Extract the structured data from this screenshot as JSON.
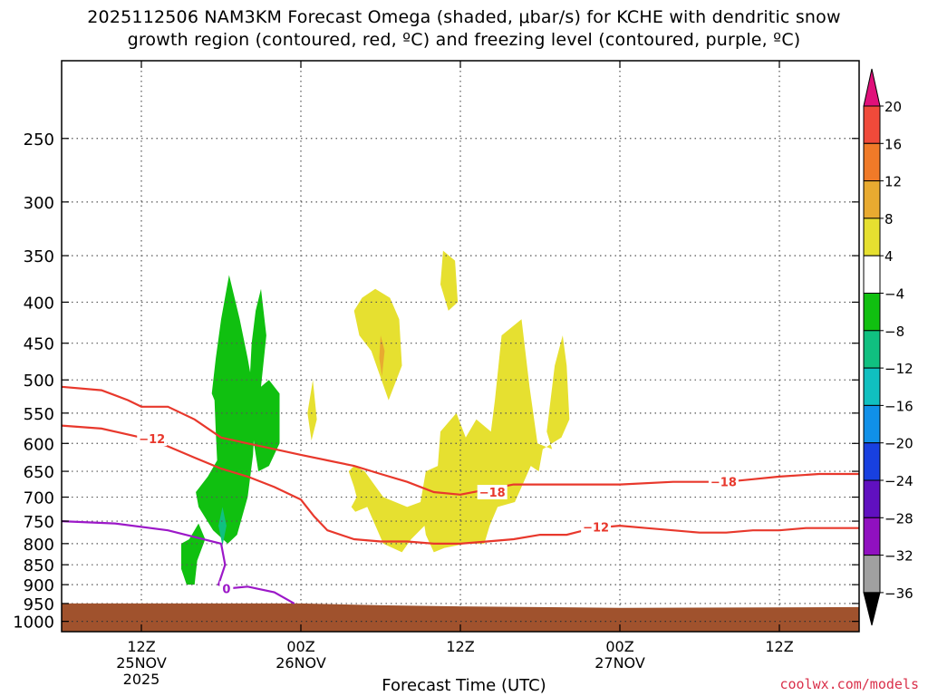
{
  "header": {
    "title_line1": "2025112506 NAM3KM Forecast Omega (shaded, μbar/s) for KCHE with dendritic snow",
    "title_line2": "growth region (contoured, red, ºC) and freezing level (contoured, purple, ºC)"
  },
  "credit": "coolwx.com/models",
  "chart_data": {
    "type": "heatmap",
    "title": "2025112506 NAM3KM Forecast Omega (shaded, μbar/s) for KCHE with dendritic snow growth region (contoured, red, ºC) and freezing level (contoured, purple, ºC)",
    "xlabel": "Forecast Time (UTC)",
    "ylabel": "",
    "x_ticks": [
      {
        "label": "12Z",
        "date": "25NOV",
        "year": "2025",
        "hour": 12
      },
      {
        "label": "00Z",
        "date": "26NOV",
        "year": "",
        "hour": 24
      },
      {
        "label": "12Z",
        "date": "",
        "year": "",
        "hour": 36
      },
      {
        "label": "00Z",
        "date": "27NOV",
        "year": "",
        "hour": 48
      },
      {
        "label": "12Z",
        "date": "",
        "year": "",
        "hour": 60
      }
    ],
    "xlim": [
      6,
      66
    ],
    "y_ticks": [
      250,
      300,
      350,
      400,
      450,
      500,
      550,
      600,
      650,
      700,
      750,
      800,
      850,
      900,
      950,
      1000
    ],
    "ylim": [
      1030,
      200
    ],
    "y_scale": "pressure (hPa, log)",
    "grid": true,
    "colorbar": {
      "labels": [
        "20",
        "16",
        "12",
        "8",
        "4",
        "−4",
        "−8",
        "−12",
        "−16",
        "−20",
        "−24",
        "−28",
        "−32",
        "−36"
      ],
      "colors": [
        "#e0107a",
        "#f04a3a",
        "#f07a28",
        "#e8aa30",
        "#e6e030",
        "#ffffff",
        "#10c010",
        "#10c080",
        "#10c0c0",
        "#1090e8",
        "#1840e0",
        "#6010c0",
        "#9010c0",
        "#a0a0a0",
        "#000000"
      ]
    },
    "series": [
      {
        "name": "-12",
        "type": "contour",
        "color": "#e8382c",
        "points": [
          [
            6,
            570
          ],
          [
            9,
            575
          ],
          [
            12,
            590
          ],
          [
            14,
            605
          ],
          [
            16,
            625
          ],
          [
            18,
            645
          ],
          [
            20,
            660
          ],
          [
            22,
            680
          ],
          [
            24,
            705
          ],
          [
            25,
            740
          ],
          [
            26,
            770
          ],
          [
            28,
            790
          ],
          [
            30,
            795
          ],
          [
            32,
            795
          ],
          [
            34,
            800
          ],
          [
            36,
            800
          ],
          [
            38,
            795
          ],
          [
            40,
            790
          ],
          [
            42,
            780
          ],
          [
            44,
            780
          ],
          [
            46,
            765
          ],
          [
            48,
            760
          ],
          [
            50,
            765
          ],
          [
            52,
            770
          ],
          [
            54,
            775
          ],
          [
            56,
            775
          ],
          [
            58,
            770
          ],
          [
            60,
            770
          ],
          [
            62,
            765
          ],
          [
            66,
            765
          ]
        ]
      },
      {
        "name": "-18",
        "type": "contour",
        "color": "#e8382c",
        "points": [
          [
            6,
            510
          ],
          [
            9,
            515
          ],
          [
            11,
            530
          ],
          [
            12,
            540
          ],
          [
            14,
            540
          ],
          [
            16,
            560
          ],
          [
            18,
            590
          ],
          [
            20,
            600
          ],
          [
            22,
            610
          ],
          [
            24,
            620
          ],
          [
            26,
            630
          ],
          [
            28,
            640
          ],
          [
            30,
            655
          ],
          [
            32,
            670
          ],
          [
            34,
            690
          ],
          [
            36,
            695
          ],
          [
            38,
            685
          ],
          [
            40,
            675
          ],
          [
            44,
            675
          ],
          [
            48,
            675
          ],
          [
            52,
            670
          ],
          [
            56,
            670
          ],
          [
            58,
            665
          ],
          [
            60,
            660
          ],
          [
            63,
            655
          ],
          [
            66,
            655
          ]
        ]
      },
      {
        "name": "0",
        "type": "contour",
        "color": "#9c18c8",
        "points": [
          [
            6,
            750
          ],
          [
            10,
            755
          ],
          [
            14,
            770
          ],
          [
            16,
            785
          ],
          [
            18,
            800
          ],
          [
            18.3,
            850
          ],
          [
            17.8,
            900
          ],
          [
            18.5,
            910
          ],
          [
            20,
            905
          ],
          [
            22,
            920
          ],
          [
            23.5,
            950
          ]
        ]
      }
    ],
    "shaded_regions": [
      {
        "value": -6,
        "color": "#10c010",
        "points": [
          [
            18.6,
            370
          ],
          [
            19.4,
            420
          ],
          [
            20,
            470
          ],
          [
            20.6,
            535
          ],
          [
            20.4,
            620
          ],
          [
            20.0,
            700
          ],
          [
            19.2,
            780
          ],
          [
            18.5,
            800
          ],
          [
            17.4,
            770
          ],
          [
            16.3,
            720
          ],
          [
            16.1,
            690
          ],
          [
            17.0,
            660
          ],
          [
            17.7,
            630
          ],
          [
            17.6,
            580
          ],
          [
            17.5,
            530
          ],
          [
            17.3,
            520
          ],
          [
            17.6,
            470
          ],
          [
            18.0,
            420
          ]
        ]
      },
      {
        "value": -6,
        "color": "#10c010",
        "points": [
          [
            21.0,
            385
          ],
          [
            21.4,
            440
          ],
          [
            21.0,
            510
          ],
          [
            21.6,
            500
          ],
          [
            22.4,
            520
          ],
          [
            22.4,
            600
          ],
          [
            21.6,
            640
          ],
          [
            20.8,
            650
          ],
          [
            20.5,
            605
          ],
          [
            20.1,
            520
          ],
          [
            20.3,
            450
          ],
          [
            20.6,
            410
          ]
        ]
      },
      {
        "value": -6,
        "color": "#10c010",
        "points": [
          [
            16.3,
            755
          ],
          [
            16.8,
            790
          ],
          [
            16.2,
            840
          ],
          [
            16.0,
            900
          ],
          [
            15.4,
            900
          ],
          [
            15.0,
            860
          ],
          [
            15.0,
            800
          ],
          [
            15.6,
            790
          ]
        ]
      },
      {
        "value": -10,
        "color": "#10c080",
        "points": [
          [
            18.1,
            720
          ],
          [
            18.4,
            760
          ],
          [
            18.1,
            805
          ],
          [
            17.8,
            760
          ]
        ]
      },
      {
        "value": 6,
        "color": "#e6e030",
        "points": [
          [
            29.6,
            385
          ],
          [
            30.7,
            395
          ],
          [
            31.4,
            420
          ],
          [
            31.6,
            480
          ],
          [
            30.6,
            530
          ],
          [
            29.3,
            460
          ],
          [
            28.4,
            440
          ],
          [
            28.0,
            410
          ],
          [
            28.6,
            395
          ]
        ]
      },
      {
        "value": 6,
        "color": "#e6e030",
        "points": [
          [
            34.7,
            345
          ],
          [
            35.6,
            355
          ],
          [
            35.8,
            400
          ],
          [
            35.1,
            410
          ],
          [
            34.5,
            380
          ]
        ]
      },
      {
        "value": 6,
        "color": "#e6e030",
        "points": [
          [
            24.9,
            500
          ],
          [
            25.2,
            560
          ],
          [
            24.8,
            595
          ],
          [
            24.5,
            550
          ]
        ]
      },
      {
        "value": 10,
        "color": "#e8aa30",
        "points": [
          [
            30.0,
            440
          ],
          [
            30.3,
            460
          ],
          [
            30.1,
            495
          ],
          [
            29.9,
            470
          ]
        ]
      },
      {
        "value": 6,
        "color": "#e6e030",
        "points": [
          [
            28.0,
            640
          ],
          [
            28.8,
            650
          ],
          [
            30.2,
            700
          ],
          [
            32.0,
            720
          ],
          [
            33.0,
            710
          ],
          [
            33.4,
            650
          ],
          [
            34.3,
            640
          ],
          [
            34.5,
            580
          ],
          [
            35.7,
            550
          ],
          [
            36.4,
            590
          ],
          [
            37.2,
            560
          ],
          [
            38.3,
            580
          ],
          [
            38.6,
            530
          ],
          [
            39.1,
            440
          ],
          [
            40.6,
            420
          ],
          [
            41.2,
            510
          ],
          [
            41.8,
            600
          ],
          [
            42.9,
            610
          ],
          [
            42.5,
            580
          ],
          [
            43.1,
            480
          ],
          [
            43.7,
            440
          ],
          [
            44.0,
            480
          ],
          [
            44.2,
            560
          ],
          [
            43.6,
            590
          ],
          [
            42.2,
            610
          ],
          [
            41.9,
            650
          ],
          [
            41.3,
            640
          ],
          [
            40.6,
            680
          ],
          [
            40.1,
            710
          ],
          [
            38.8,
            720
          ],
          [
            38.2,
            760
          ],
          [
            37.8,
            800
          ],
          [
            36.4,
            800
          ],
          [
            34.8,
            810
          ],
          [
            34.0,
            820
          ],
          [
            33.4,
            780
          ],
          [
            33.3,
            760
          ],
          [
            32.3,
            790
          ],
          [
            31.6,
            820
          ],
          [
            30.2,
            800
          ],
          [
            29.0,
            720
          ],
          [
            28.1,
            730
          ],
          [
            27.8,
            720
          ],
          [
            28.2,
            700
          ],
          [
            28.0,
            680
          ],
          [
            27.6,
            650
          ]
        ]
      }
    ],
    "terrain": {
      "color": "#a0522d",
      "points": [
        [
          6,
          950
        ],
        [
          24,
          950
        ],
        [
          30,
          955
        ],
        [
          36,
          958
        ],
        [
          48,
          962
        ],
        [
          66,
          960
        ]
      ]
    }
  }
}
